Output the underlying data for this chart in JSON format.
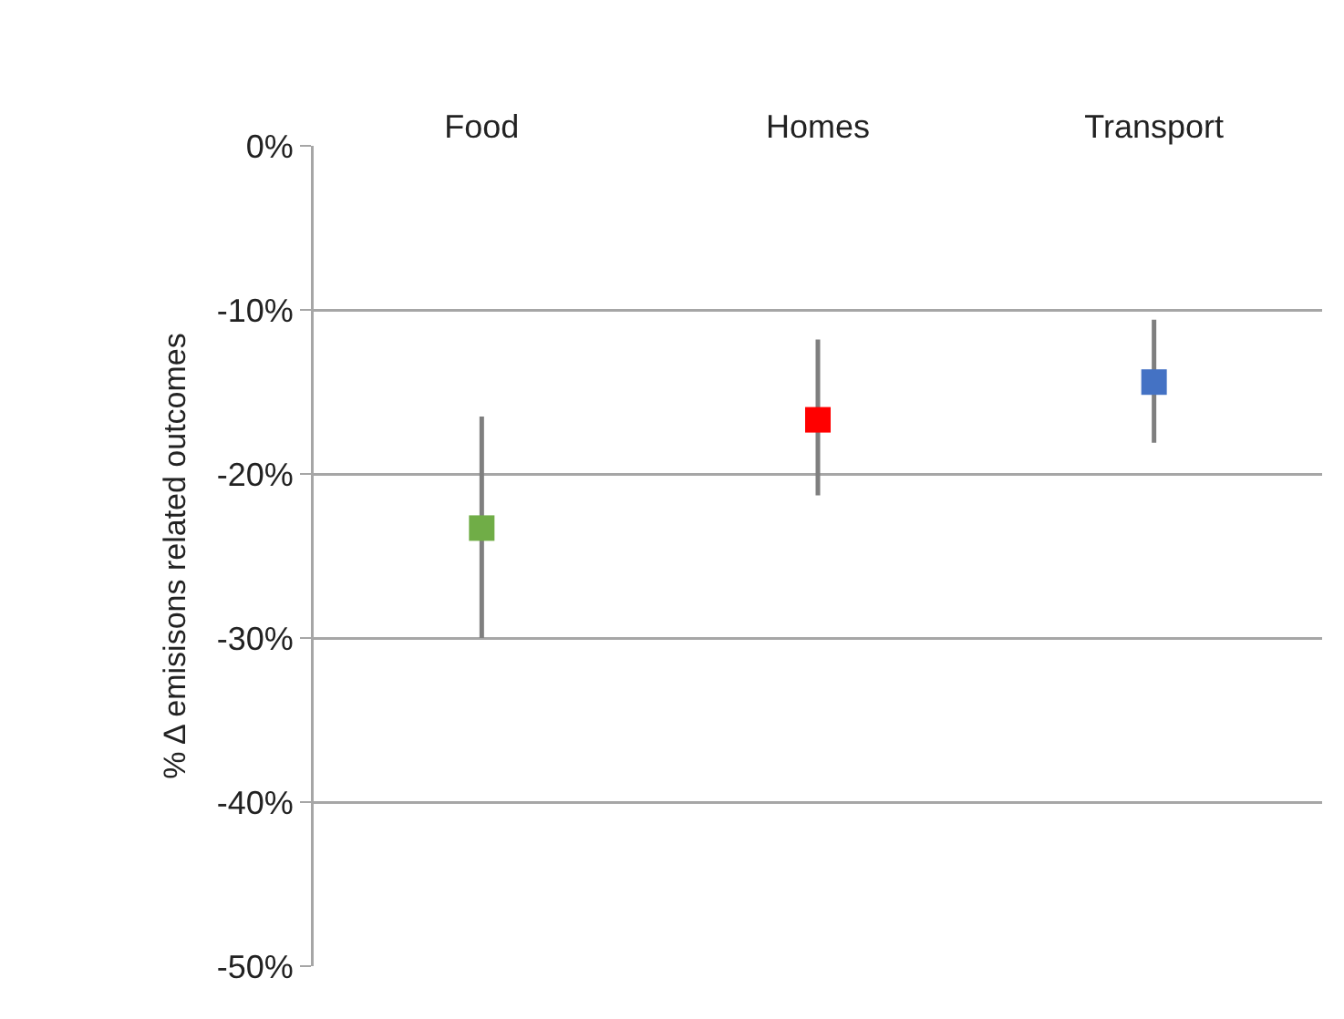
{
  "chart_data": {
    "type": "scatter",
    "ylabel": "% Δ emisisons related outcomes",
    "categories": [
      "Food",
      "Homes",
      "Transport"
    ],
    "values": [
      -23.3,
      -16.7,
      -14.4
    ],
    "colors": [
      "#70ad47",
      "#ff0000",
      "#4472c4"
    ],
    "errors": [
      [
        -30,
        -16.5
      ],
      [
        -21.3,
        -11.8
      ],
      [
        -18.1,
        -10.6
      ]
    ],
    "marker": "square",
    "grid": "y",
    "ylim": [
      -50,
      0
    ],
    "yticks": [
      {
        "value": 0,
        "label": "0%"
      },
      {
        "value": -10,
        "label": "-10%"
      },
      {
        "value": -20,
        "label": "-20%"
      },
      {
        "value": -30,
        "label": "-30%"
      },
      {
        "value": -40,
        "label": "-40%"
      },
      {
        "value": -50,
        "label": "-50%"
      }
    ]
  }
}
